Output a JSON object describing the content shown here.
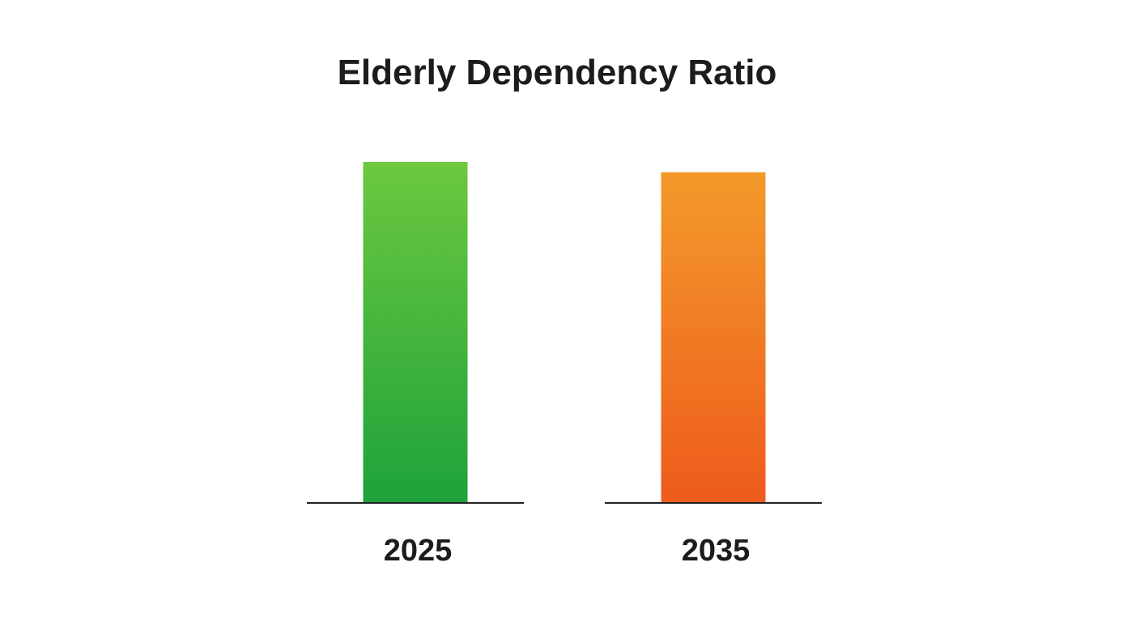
{
  "chart_data": {
    "type": "bar",
    "title": "Elderly Dependency Ratio",
    "xlabel": "",
    "ylabel": "",
    "categories": [
      "2025",
      "2035"
    ],
    "values": [
      1.0,
      0.97
    ],
    "ylim": [
      0,
      1
    ],
    "grid": false,
    "axes_visible": false,
    "colors": [
      {
        "top": "#6cc83f",
        "bottom": "#1ea23b"
      },
      {
        "top": "#f39a2b",
        "bottom": "#ee5b1c"
      }
    ]
  }
}
